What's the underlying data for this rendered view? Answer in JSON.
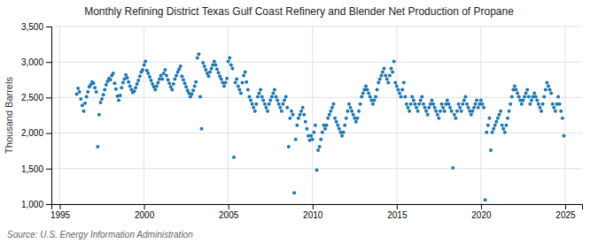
{
  "chart_data": {
    "type": "scatter",
    "title": "Monthly Refining District Texas Gulf Coast Refinery and Blender Net Production of Propane",
    "ylabel": "Thousand Barrels",
    "source": "Source: U.S. Energy Information Administration",
    "xlim": [
      1994.5,
      2026.0
    ],
    "xticks": [
      1995,
      2000,
      2005,
      2010,
      2015,
      2020,
      2025
    ],
    "ylim": [
      1000,
      3500
    ],
    "yticks": [
      {
        "value": 1000,
        "label": "1,000"
      },
      {
        "value": 1500,
        "label": "1,500"
      },
      {
        "value": 2000,
        "label": "2,000"
      },
      {
        "value": 2500,
        "label": "2,500"
      },
      {
        "value": 3000,
        "label": "3,000"
      },
      {
        "value": 3500,
        "label": "3,500"
      }
    ],
    "grid": true,
    "x": [
      1996.0,
      1996.083,
      1996.167,
      1996.25,
      1996.333,
      1996.417,
      1996.5,
      1996.583,
      1996.667,
      1996.75,
      1996.833,
      1996.917,
      1997.0,
      1997.083,
      1997.167,
      1997.25,
      1997.333,
      1997.417,
      1997.5,
      1997.583,
      1997.667,
      1997.75,
      1997.833,
      1997.917,
      1998.0,
      1998.083,
      1998.167,
      1998.25,
      1998.333,
      1998.417,
      1998.5,
      1998.583,
      1998.667,
      1998.75,
      1998.833,
      1998.917,
      1999.0,
      1999.083,
      1999.167,
      1999.25,
      1999.333,
      1999.417,
      1999.5,
      1999.583,
      1999.667,
      1999.75,
      1999.833,
      1999.917,
      2000.0,
      2000.083,
      2000.167,
      2000.25,
      2000.333,
      2000.417,
      2000.5,
      2000.583,
      2000.667,
      2000.75,
      2000.833,
      2000.917,
      2001.0,
      2001.083,
      2001.167,
      2001.25,
      2001.333,
      2001.417,
      2001.5,
      2001.583,
      2001.667,
      2001.75,
      2001.833,
      2001.917,
      2002.0,
      2002.083,
      2002.167,
      2002.25,
      2002.333,
      2002.417,
      2002.5,
      2002.583,
      2002.667,
      2002.75,
      2002.833,
      2002.917,
      2003.0,
      2003.083,
      2003.167,
      2003.25,
      2003.333,
      2003.417,
      2003.5,
      2003.583,
      2003.667,
      2003.75,
      2003.833,
      2003.917,
      2004.0,
      2004.083,
      2004.167,
      2004.25,
      2004.333,
      2004.417,
      2004.5,
      2004.583,
      2004.667,
      2004.75,
      2004.833,
      2004.917,
      2005.0,
      2005.083,
      2005.167,
      2005.25,
      2005.333,
      2005.417,
      2005.5,
      2005.583,
      2005.667,
      2005.75,
      2005.833,
      2005.917,
      2006.0,
      2006.083,
      2006.167,
      2006.25,
      2006.333,
      2006.417,
      2006.5,
      2006.583,
      2006.667,
      2006.75,
      2006.833,
      2006.917,
      2007.0,
      2007.083,
      2007.167,
      2007.25,
      2007.333,
      2007.417,
      2007.5,
      2007.583,
      2007.667,
      2007.75,
      2007.833,
      2007.917,
      2008.0,
      2008.083,
      2008.167,
      2008.25,
      2008.333,
      2008.417,
      2008.5,
      2008.583,
      2008.667,
      2008.75,
      2008.833,
      2008.917,
      2009.0,
      2009.083,
      2009.167,
      2009.25,
      2009.333,
      2009.417,
      2009.5,
      2009.583,
      2009.667,
      2009.75,
      2009.833,
      2009.917,
      2010.0,
      2010.083,
      2010.167,
      2010.25,
      2010.333,
      2010.417,
      2010.5,
      2010.583,
      2010.667,
      2010.75,
      2010.833,
      2010.917,
      2011.0,
      2011.083,
      2011.167,
      2011.25,
      2011.333,
      2011.417,
      2011.5,
      2011.583,
      2011.667,
      2011.75,
      2011.833,
      2011.917,
      2012.0,
      2012.083,
      2012.167,
      2012.25,
      2012.333,
      2012.417,
      2012.5,
      2012.583,
      2012.667,
      2012.75,
      2012.833,
      2012.917,
      2013.0,
      2013.083,
      2013.167,
      2013.25,
      2013.333,
      2013.417,
      2013.5,
      2013.583,
      2013.667,
      2013.75,
      2013.833,
      2013.917,
      2014.0,
      2014.083,
      2014.167,
      2014.25,
      2014.333,
      2014.417,
      2014.5,
      2014.583,
      2014.667,
      2014.75,
      2014.833,
      2014.917,
      2015.0,
      2015.083,
      2015.167,
      2015.25,
      2015.333,
      2015.417,
      2015.5,
      2015.583,
      2015.667,
      2015.75,
      2015.833,
      2015.917,
      2016.0,
      2016.083,
      2016.167,
      2016.25,
      2016.333,
      2016.417,
      2016.5,
      2016.583,
      2016.667,
      2016.75,
      2016.833,
      2016.917,
      2017.0,
      2017.083,
      2017.167,
      2017.25,
      2017.333,
      2017.417,
      2017.5,
      2017.583,
      2017.667,
      2017.75,
      2017.833,
      2017.917,
      2018.0,
      2018.083,
      2018.167,
      2018.25,
      2018.333,
      2018.417,
      2018.5,
      2018.583,
      2018.667,
      2018.75,
      2018.833,
      2018.917,
      2019.0,
      2019.083,
      2019.167,
      2019.25,
      2019.333,
      2019.417,
      2019.5,
      2019.583,
      2019.667,
      2019.75,
      2019.833,
      2019.917,
      2020.0,
      2020.083,
      2020.167,
      2020.25,
      2020.333,
      2020.417,
      2020.5,
      2020.583,
      2020.667,
      2020.75,
      2020.833,
      2020.917,
      2021.0,
      2021.083,
      2021.167,
      2021.25,
      2021.333,
      2021.417,
      2021.5,
      2021.583,
      2021.667,
      2021.75,
      2021.833,
      2021.917,
      2022.0,
      2022.083,
      2022.167,
      2022.25,
      2022.333,
      2022.417,
      2022.5,
      2022.583,
      2022.667,
      2022.75,
      2022.833,
      2022.917,
      2023.0,
      2023.083,
      2023.167,
      2023.25,
      2023.333,
      2023.417,
      2023.5,
      2023.583,
      2023.667,
      2023.75,
      2023.833,
      2023.917,
      2024.0,
      2024.083,
      2024.167,
      2024.25,
      2024.333,
      2024.417,
      2024.5,
      2024.583,
      2024.667,
      2024.75,
      2024.833,
      2024.917
    ],
    "values": [
      2550,
      2630,
      2580,
      2480,
      2390,
      2310,
      2420,
      2510,
      2580,
      2650,
      2680,
      2720,
      2700,
      2640,
      2580,
      1810,
      2260,
      2430,
      2480,
      2540,
      2610,
      2680,
      2730,
      2770,
      2750,
      2810,
      2840,
      2700,
      2620,
      2520,
      2460,
      2530,
      2640,
      2710,
      2760,
      2820,
      2780,
      2720,
      2660,
      2610,
      2570,
      2590,
      2640,
      2690,
      2740,
      2800,
      2860,
      2890,
      2960,
      3010,
      2880,
      2840,
      2790,
      2740,
      2690,
      2650,
      2610,
      2660,
      2710,
      2760,
      2810,
      2760,
      2840,
      2890,
      2810,
      2750,
      2700,
      2650,
      2610,
      2690,
      2760,
      2810,
      2860,
      2900,
      2940,
      2800,
      2750,
      2700,
      2650,
      2600,
      2560,
      2510,
      2550,
      2600,
      2660,
      2720,
      3060,
      3110,
      2510,
      2060,
      2990,
      2940,
      2890,
      2840,
      2800,
      2860,
      2910,
      2960,
      3010,
      2960,
      2900,
      2850,
      2800,
      2760,
      2710,
      2660,
      2710,
      2770,
      3010,
      3060,
      2960,
      2910,
      1660,
      2710,
      2760,
      2660,
      2610,
      2560,
      2710,
      2810,
      2860,
      2720,
      2610,
      2510,
      2460,
      2410,
      2360,
      2310,
      2410,
      2510,
      2560,
      2610,
      2510,
      2460,
      2410,
      2360,
      2310,
      2410,
      2460,
      2510,
      2560,
      2610,
      2510,
      2460,
      2410,
      2360,
      2310,
      2410,
      2460,
      2510,
      2360,
      1810,
      2210,
      2310,
      2260,
      1160,
      1910,
      2110,
      2210,
      2260,
      2310,
      2360,
      2260,
      2160,
      2060,
      1960,
      1900,
      1960,
      1910,
      2010,
      2110,
      1480,
      1760,
      1810,
      1910,
      2010,
      2110,
      2060,
      2110,
      2210,
      2260,
      2310,
      2360,
      2410,
      2210,
      2160,
      2110,
      2060,
      2010,
      1960,
      2010,
      2110,
      2210,
      2310,
      2410,
      2360,
      2310,
      2260,
      2210,
      2160,
      2210,
      2310,
      2410,
      2510,
      2560,
      2610,
      2660,
      2610,
      2560,
      2510,
      2460,
      2410,
      2460,
      2510,
      2610,
      2710,
      2760,
      2810,
      2860,
      2910,
      2810,
      2760,
      2710,
      2810,
      2910,
      2860,
      3010,
      2710,
      2660,
      2610,
      2560,
      2510,
      2610,
      2710,
      2510,
      2410,
      2360,
      2310,
      2410,
      2510,
      2460,
      2410,
      2360,
      2310,
      2410,
      2460,
      2510,
      2410,
      2360,
      2310,
      2260,
      2360,
      2410,
      2460,
      2410,
      2360,
      2310,
      2260,
      2210,
      2310,
      2410,
      2360,
      2310,
      2410,
      2460,
      2410,
      2360,
      2310,
      1510,
      2260,
      2210,
      2310,
      2410,
      2360,
      2310,
      2410,
      2460,
      2510,
      2410,
      2360,
      2310,
      2260,
      2310,
      2360,
      2410,
      2460,
      2360,
      2410,
      2460,
      2410,
      2360,
      1060,
      2010,
      2110,
      2210,
      1760,
      2010,
      2060,
      2110,
      2160,
      2210,
      2260,
      2310,
      2110,
      2060,
      2010,
      2110,
      2210,
      2310,
      2410,
      2510,
      2610,
      2660,
      2610,
      2560,
      2510,
      2460,
      2410,
      2460,
      2510,
      2560,
      2610,
      2510,
      2410,
      2460,
      2510,
      2560,
      2510,
      2460,
      2410,
      2360,
      2310,
      2410,
      2510,
      2610,
      2710,
      2660,
      2610,
      2560,
      2410,
      2360,
      2310,
      2410,
      2510,
      2410,
      2310,
      2210,
      1960
    ]
  }
}
